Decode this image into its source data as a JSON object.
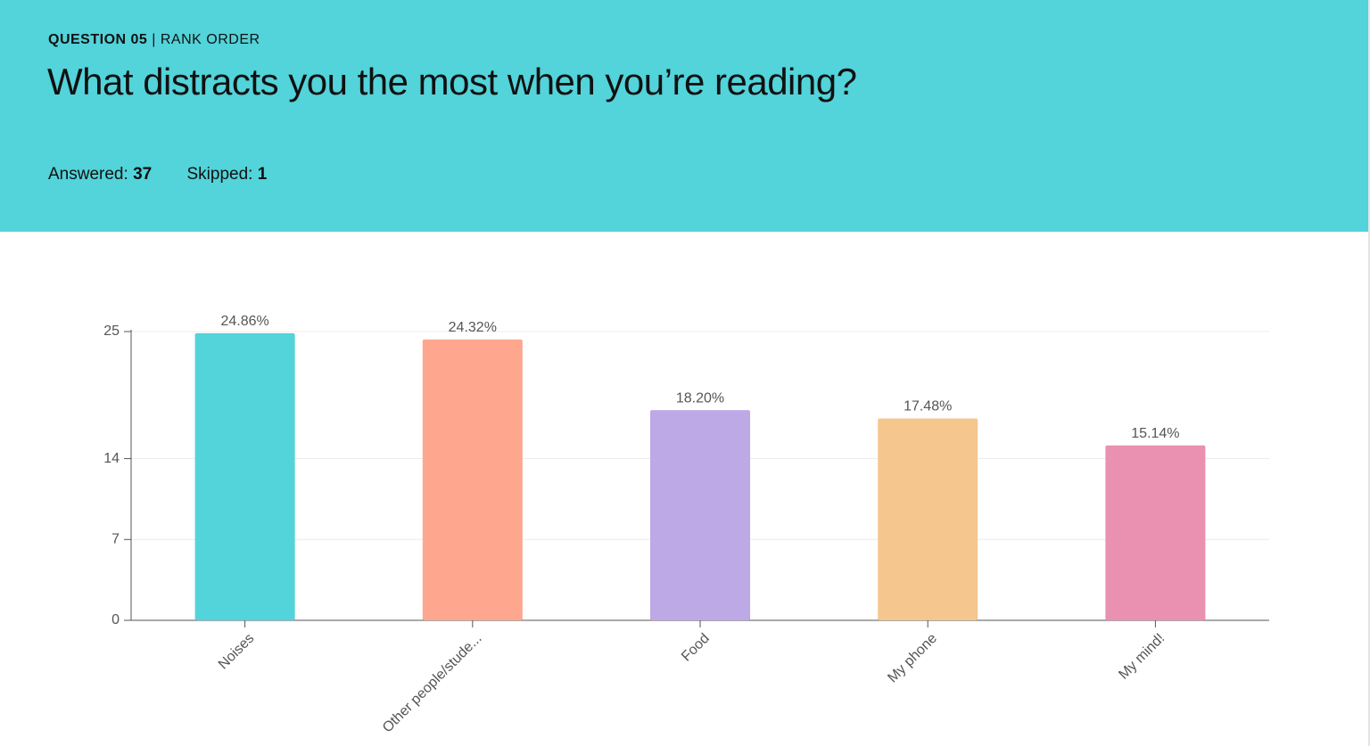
{
  "header": {
    "question_label": "QUESTION 05",
    "separator": "|",
    "question_type": "RANK ORDER",
    "title": "What distracts you the most when you’re reading?",
    "answered_label": "Answered:",
    "answered": 37,
    "skipped_label": "Skipped:",
    "skipped": 1
  },
  "chart_data": {
    "type": "bar",
    "categories": [
      "Noises",
      "Other people/stude...",
      "Food",
      "My phone",
      "My mind!"
    ],
    "values": [
      24.86,
      24.32,
      18.2,
      17.48,
      15.14
    ],
    "value_labels": [
      "24.86%",
      "24.32%",
      "18.20%",
      "17.48%",
      "15.14%"
    ],
    "colors": [
      "#53d3da",
      "#fea78e",
      "#bea9e7",
      "#f5c68e",
      "#ea90b1"
    ],
    "ylim": [
      0,
      25
    ],
    "yticks": [
      0,
      7,
      14,
      25
    ],
    "grid": true
  }
}
